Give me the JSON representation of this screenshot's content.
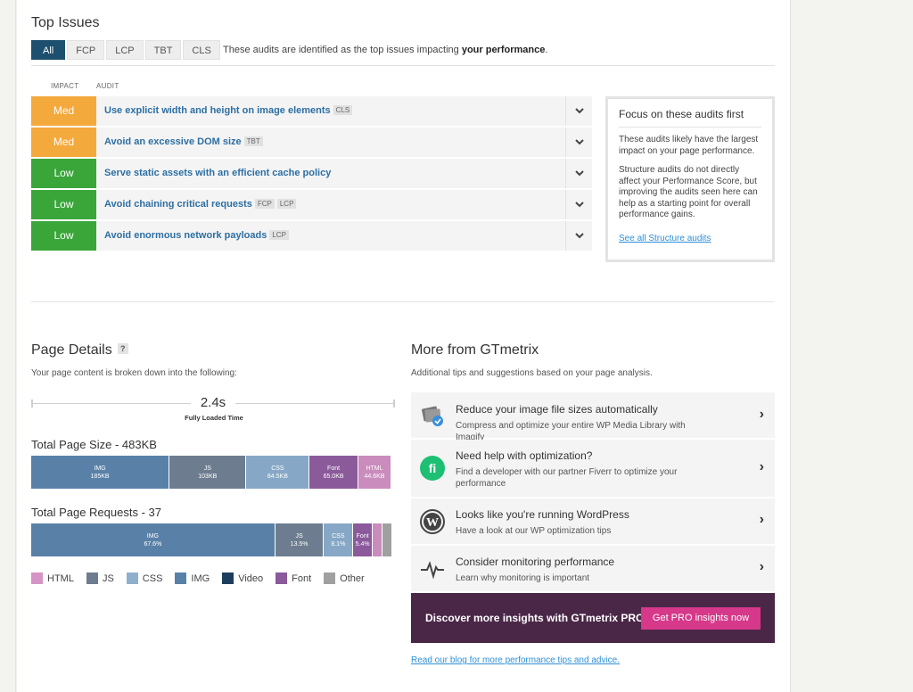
{
  "top_issues": {
    "title": "Top Issues",
    "tabs": [
      "All",
      "FCP",
      "LCP",
      "TBT",
      "CLS"
    ],
    "active_tab": "All",
    "note_prefix": "These audits are identified as the top issues impacting ",
    "note_bold": "your performance",
    "note_suffix": ".",
    "col_impact": "IMPACT",
    "col_audit": "AUDIT",
    "audits": [
      {
        "impact": "Med",
        "title": "Use explicit width and height on image elements",
        "tags": [
          "CLS"
        ]
      },
      {
        "impact": "Med",
        "title": "Avoid an excessive DOM size",
        "tags": [
          "TBT"
        ]
      },
      {
        "impact": "Low",
        "title": "Serve static assets with an efficient cache policy",
        "tags": []
      },
      {
        "impact": "Low",
        "title": "Avoid chaining critical requests",
        "tags": [
          "FCP",
          "LCP"
        ]
      },
      {
        "impact": "Low",
        "title": "Avoid enormous network payloads",
        "tags": [
          "LCP"
        ]
      }
    ],
    "focus": {
      "title": "Focus on these audits first",
      "p1": "These audits likely have the largest impact on your page performance.",
      "p2": "Structure audits do not directly affect your Performance Score, but improving the audits seen here can help as a starting point for overall performance gains.",
      "link": "See all Structure audits"
    }
  },
  "page_details": {
    "title": "Page Details",
    "help": "?",
    "subtitle": "Your page content is broken down into the following:",
    "fully_loaded_value": "2.4s",
    "fully_loaded_label": "Fully Loaded Time",
    "size_title": "Total Page Size - 483KB",
    "size_segments": [
      {
        "label": "IMG",
        "value": "185KB",
        "kb": 185,
        "color": "#5981a8"
      },
      {
        "label": "JS",
        "value": "103KB",
        "kb": 103,
        "color": "#6d7d8f"
      },
      {
        "label": "CSS",
        "value": "84.5KB",
        "kb": 84.5,
        "color": "#86a8c6"
      },
      {
        "label": "Font",
        "value": "65.0KB",
        "kb": 65.0,
        "color": "#8a5a9a"
      },
      {
        "label": "HTML",
        "value": "44.6KB",
        "kb": 44.6,
        "color": "#c98cbc"
      }
    ],
    "requests_title": "Total Page Requests - 37",
    "request_segments": [
      {
        "label": "IMG",
        "value": "67.6%",
        "pct": 67.6,
        "color": "#5981a8"
      },
      {
        "label": "JS",
        "value": "13.5%",
        "pct": 13.5,
        "color": "#6d7d8f"
      },
      {
        "label": "CSS",
        "value": "8.1%",
        "pct": 8.1,
        "color": "#86a8c6"
      },
      {
        "label": "Font",
        "value": "5.4%",
        "pct": 5.4,
        "color": "#8a5a9a"
      },
      {
        "label": "",
        "value": "",
        "pct": 2.7,
        "color": "#c98cbc"
      },
      {
        "label": "",
        "value": "",
        "pct": 2.7,
        "color": "#a0a0a0"
      }
    ],
    "legend": [
      {
        "label": "HTML",
        "color": "#d694c4"
      },
      {
        "label": "JS",
        "color": "#6d7d8f"
      },
      {
        "label": "CSS",
        "color": "#8fb0cc"
      },
      {
        "label": "IMG",
        "color": "#5981a8"
      },
      {
        "label": "Video",
        "color": "#1d3d5e"
      },
      {
        "label": "Font",
        "color": "#8a5a9a"
      },
      {
        "label": "Other",
        "color": "#a0a0a0"
      }
    ]
  },
  "more": {
    "title": "More from GTmetrix",
    "subtitle": "Additional tips and suggestions based on your page analysis.",
    "items": [
      {
        "icon": "imagify-icon",
        "title": "Reduce your image file sizes automatically",
        "sub": "Compress and optimize your entire WP Media Library with Imagify"
      },
      {
        "icon": "fiverr-icon",
        "title": "Need help with optimization?",
        "sub": "Find a developer with our partner Fiverr to optimize your performance"
      },
      {
        "icon": "wordpress-icon",
        "title": "Looks like you're running WordPress",
        "sub": "Have a look at our WP optimization tips"
      },
      {
        "icon": "pulse-icon",
        "title": "Consider monitoring performance",
        "sub": "Learn why monitoring is important"
      }
    ],
    "promo_text": "Discover more insights with GTmetrix PRO",
    "promo_button": "Get PRO insights now",
    "blog_link": "Read our blog for more performance tips and advice."
  }
}
